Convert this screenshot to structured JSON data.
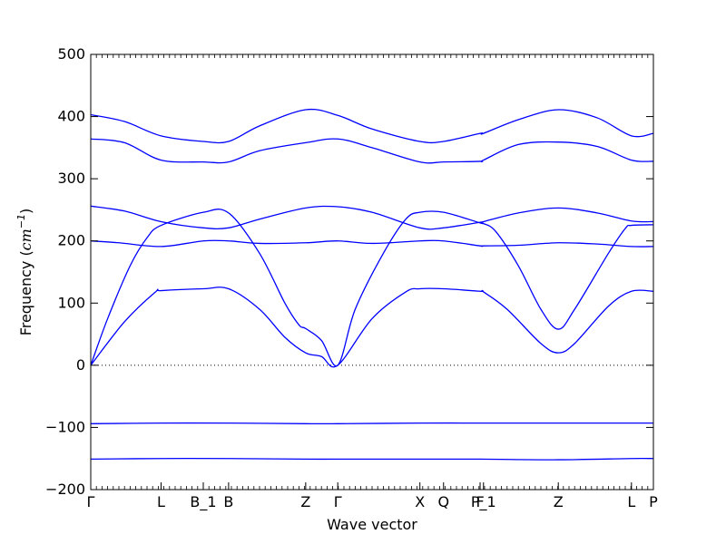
{
  "chart_data": {
    "type": "line",
    "title": "",
    "xlabel": "Wave vector",
    "ylabel_prefix": "Frequency (",
    "ylabel_unit_base": "cm",
    "ylabel_unit_exp": "−1",
    "ylabel_suffix": ")",
    "ylim": [
      -200,
      500
    ],
    "xlim": [
      0,
      1
    ],
    "grid": false,
    "legend": "none",
    "line_color": "#0000ff",
    "zero_line_color": "#000000",
    "y_ticks": [
      {
        "value": -200,
        "label": "−200"
      },
      {
        "value": -100,
        "label": "−100"
      },
      {
        "value": 0,
        "label": "0"
      },
      {
        "value": 100,
        "label": "100"
      },
      {
        "value": 200,
        "label": "200"
      },
      {
        "value": 300,
        "label": "300"
      },
      {
        "value": 400,
        "label": "400"
      },
      {
        "value": 500,
        "label": "500"
      }
    ],
    "x_ticks": [
      {
        "pos": 0.0,
        "label": "Γ"
      },
      {
        "pos": 0.125,
        "label": "L"
      },
      {
        "pos": 0.2,
        "label": "B_1"
      },
      {
        "pos": 0.245,
        "label": "B"
      },
      {
        "pos": 0.382,
        "label": "Z"
      },
      {
        "pos": 0.439,
        "label": "Γ"
      },
      {
        "pos": 0.585,
        "label": "X"
      },
      {
        "pos": 0.627,
        "label": "Q"
      },
      {
        "pos": 0.692,
        "label": "F"
      },
      {
        "pos": 0.698,
        "label": "P_1"
      },
      {
        "pos": 0.831,
        "label": "Z"
      },
      {
        "pos": 0.961,
        "label": "L"
      },
      {
        "pos": 1.0,
        "label": "P"
      }
    ],
    "series": [
      {
        "points": [
          [
            0,
            -151
          ],
          [
            0.125,
            -150
          ],
          [
            0.245,
            -150
          ],
          [
            0.382,
            -151
          ],
          [
            0.439,
            -151
          ],
          [
            0.585,
            -151
          ],
          [
            0.692,
            -151
          ],
          [
            0.831,
            -152
          ],
          [
            0.961,
            -150
          ],
          [
            1.0,
            -150
          ]
        ]
      },
      {
        "points": [
          [
            0,
            -94
          ],
          [
            0.125,
            -93
          ],
          [
            0.245,
            -93
          ],
          [
            0.382,
            -94
          ],
          [
            0.439,
            -94
          ],
          [
            0.585,
            -93
          ],
          [
            0.692,
            -93
          ],
          [
            0.831,
            -93
          ],
          [
            0.961,
            -93
          ],
          [
            1.0,
            -93
          ]
        ]
      },
      {
        "points": [
          [
            0,
            0
          ],
          [
            0.06,
            70
          ],
          [
            0.115,
            118
          ],
          [
            0.125,
            120
          ],
          [
            0.2,
            123
          ],
          [
            0.245,
            123
          ],
          [
            0.3,
            90
          ],
          [
            0.345,
            45
          ],
          [
            0.382,
            20
          ],
          [
            0.41,
            14
          ],
          [
            0.439,
            0
          ],
          [
            0.5,
            75
          ],
          [
            0.56,
            118
          ],
          [
            0.585,
            123
          ],
          [
            0.627,
            123
          ],
          [
            0.692,
            119
          ],
          [
            0.698,
            118
          ],
          [
            0.74,
            90
          ],
          [
            0.8,
            35
          ],
          [
            0.831,
            20
          ],
          [
            0.86,
            35
          ],
          [
            0.92,
            95
          ],
          [
            0.961,
            119
          ],
          [
            1.0,
            119
          ]
        ]
      },
      {
        "points": [
          [
            0,
            0
          ],
          [
            0.03,
            75
          ],
          [
            0.07,
            160
          ],
          [
            0.1,
            205
          ],
          [
            0.125,
            225
          ],
          [
            0.2,
            246
          ],
          [
            0.245,
            245
          ],
          [
            0.3,
            180
          ],
          [
            0.345,
            100
          ],
          [
            0.37,
            65
          ],
          [
            0.382,
            59
          ],
          [
            0.41,
            40
          ],
          [
            0.439,
            0
          ],
          [
            0.47,
            90
          ],
          [
            0.52,
            180
          ],
          [
            0.56,
            235
          ],
          [
            0.585,
            246
          ],
          [
            0.627,
            246
          ],
          [
            0.692,
            229
          ],
          [
            0.698,
            228
          ],
          [
            0.72,
            215
          ],
          [
            0.76,
            160
          ],
          [
            0.8,
            90
          ],
          [
            0.831,
            58
          ],
          [
            0.86,
            90
          ],
          [
            0.92,
            180
          ],
          [
            0.95,
            220
          ],
          [
            0.961,
            225
          ],
          [
            1.0,
            226
          ]
        ]
      },
      {
        "points": [
          [
            0,
            200
          ],
          [
            0.05,
            197
          ],
          [
            0.125,
            191
          ],
          [
            0.2,
            200
          ],
          [
            0.245,
            200
          ],
          [
            0.3,
            196
          ],
          [
            0.382,
            197
          ],
          [
            0.439,
            200
          ],
          [
            0.5,
            196
          ],
          [
            0.585,
            200
          ],
          [
            0.627,
            200
          ],
          [
            0.692,
            192
          ],
          [
            0.698,
            192
          ],
          [
            0.76,
            193
          ],
          [
            0.831,
            197
          ],
          [
            0.9,
            195
          ],
          [
            0.961,
            191
          ],
          [
            1.0,
            191
          ]
        ]
      },
      {
        "points": [
          [
            0,
            256
          ],
          [
            0.06,
            248
          ],
          [
            0.125,
            231
          ],
          [
            0.2,
            221
          ],
          [
            0.245,
            221
          ],
          [
            0.3,
            235
          ],
          [
            0.382,
            253
          ],
          [
            0.439,
            255
          ],
          [
            0.5,
            246
          ],
          [
            0.585,
            221
          ],
          [
            0.627,
            221
          ],
          [
            0.692,
            230
          ],
          [
            0.698,
            231
          ],
          [
            0.76,
            245
          ],
          [
            0.831,
            253
          ],
          [
            0.9,
            245
          ],
          [
            0.961,
            232
          ],
          [
            1.0,
            231
          ]
        ]
      },
      {
        "points": [
          [
            0,
            364
          ],
          [
            0.06,
            358
          ],
          [
            0.125,
            330
          ],
          [
            0.2,
            327
          ],
          [
            0.245,
            327
          ],
          [
            0.3,
            345
          ],
          [
            0.382,
            358
          ],
          [
            0.439,
            364
          ],
          [
            0.5,
            350
          ],
          [
            0.585,
            327
          ],
          [
            0.627,
            327
          ],
          [
            0.692,
            328
          ],
          [
            0.698,
            330
          ],
          [
            0.76,
            355
          ],
          [
            0.831,
            359
          ],
          [
            0.9,
            352
          ],
          [
            0.961,
            330
          ],
          [
            1.0,
            328
          ]
        ]
      },
      {
        "points": [
          [
            0,
            403
          ],
          [
            0.06,
            392
          ],
          [
            0.125,
            369
          ],
          [
            0.2,
            360
          ],
          [
            0.245,
            360
          ],
          [
            0.3,
            385
          ],
          [
            0.382,
            411
          ],
          [
            0.439,
            402
          ],
          [
            0.5,
            380
          ],
          [
            0.585,
            360
          ],
          [
            0.627,
            360
          ],
          [
            0.692,
            373
          ],
          [
            0.698,
            373
          ],
          [
            0.76,
            395
          ],
          [
            0.831,
            411
          ],
          [
            0.9,
            398
          ],
          [
            0.961,
            369
          ],
          [
            1.0,
            373
          ]
        ]
      }
    ]
  }
}
